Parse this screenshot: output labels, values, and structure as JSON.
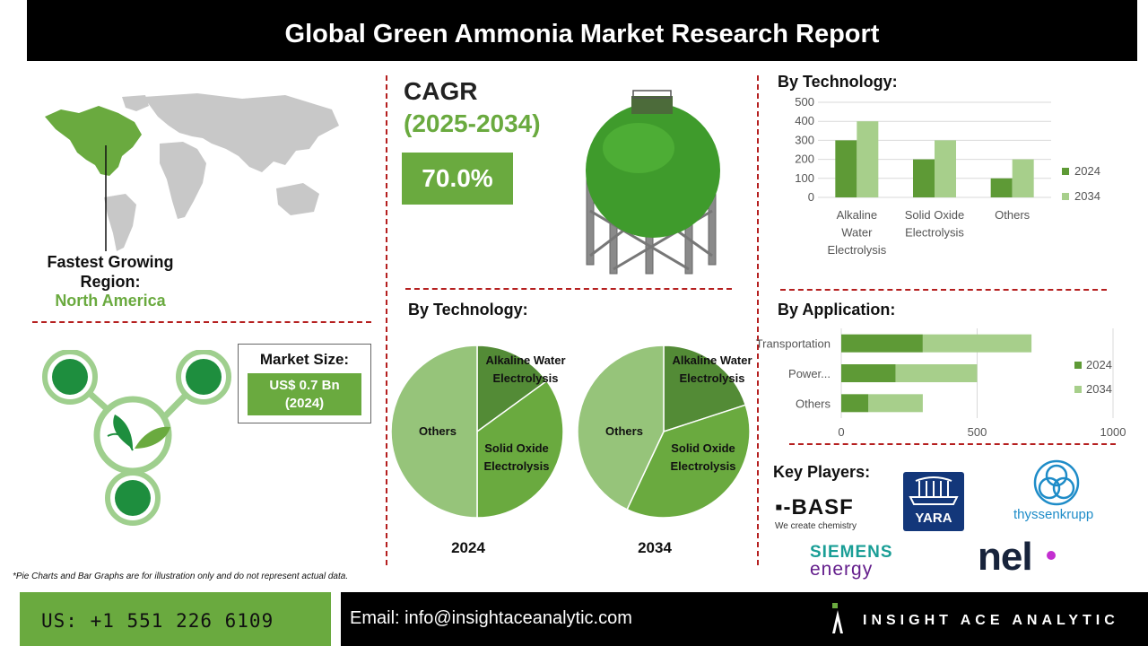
{
  "header": {
    "title": "Global Green Ammonia Market Research Report"
  },
  "cagr": {
    "label": "CAGR",
    "years": "(2025-2034)",
    "value": "70.0%"
  },
  "region": {
    "title": "Fastest Growing Region:",
    "value": "North America"
  },
  "market_size": {
    "title": "Market Size:",
    "value_line1": "US$ 0.7 Bn",
    "value_line2": "(2024)"
  },
  "sections": {
    "tech_bar_title": "By Technology:",
    "tech_pie_title": "By Technology:",
    "application_title": "By Application:",
    "key_players_title": "Key Players:"
  },
  "footnote": "*Pie Charts and Bar Graphs are for illustration only and do not represent actual data.",
  "footer": {
    "phone": "US: +1 551 226 6109",
    "email": "Email: info@insightaceanalytic.com",
    "brand": "INSIGHT ACE ANALYTIC"
  },
  "key_players": {
    "basf": "▪-BASF",
    "basf_tagline": "We create chemistry",
    "yara": "YARA",
    "thyssenkrupp": "thyssenkrupp",
    "siemens_line1": "SIEMENS",
    "siemens_line2": "energy",
    "nel": "nel"
  },
  "colors": {
    "green_dark": "#6aaa3f",
    "green_2024": "#5e9a36",
    "green_2034": "#a7cf8b",
    "dash_red": "#b51f1f"
  },
  "chart_data": [
    {
      "type": "bar",
      "title": "By Technology:",
      "categories": [
        "Alkaline Water Electrolysis",
        "Solid Oxide Electrolysis",
        "Others"
      ],
      "series": [
        {
          "name": "2024",
          "values": [
            300,
            200,
            100
          ]
        },
        {
          "name": "2034",
          "values": [
            400,
            300,
            200
          ]
        }
      ],
      "yticks": [
        "0",
        "100",
        "200",
        "300",
        "400",
        "500"
      ],
      "ylim": [
        0,
        500
      ],
      "legend": "right",
      "grid": true
    },
    {
      "type": "bar",
      "orientation": "horizontal",
      "stacked": true,
      "title": "By Application:",
      "categories": [
        "Transportation",
        "Power...",
        "Others"
      ],
      "series": [
        {
          "name": "2024",
          "values": [
            300,
            200,
            100
          ]
        },
        {
          "name": "2034",
          "values": [
            400,
            300,
            200
          ]
        }
      ],
      "xticks": [
        "0",
        "500",
        "1000"
      ],
      "xlim": [
        0,
        1200
      ],
      "legend": "right",
      "grid": true
    },
    {
      "type": "pie",
      "title": "2024",
      "labels": [
        "Alkaline Water Electrolysis",
        "Solid Oxide Electrolysis",
        "Others"
      ],
      "values": [
        15,
        35,
        50
      ]
    },
    {
      "type": "pie",
      "title": "2034",
      "labels": [
        "Alkaline Water Electrolysis",
        "Solid Oxide Electrolysis",
        "Others"
      ],
      "values": [
        20,
        37,
        43
      ]
    }
  ]
}
